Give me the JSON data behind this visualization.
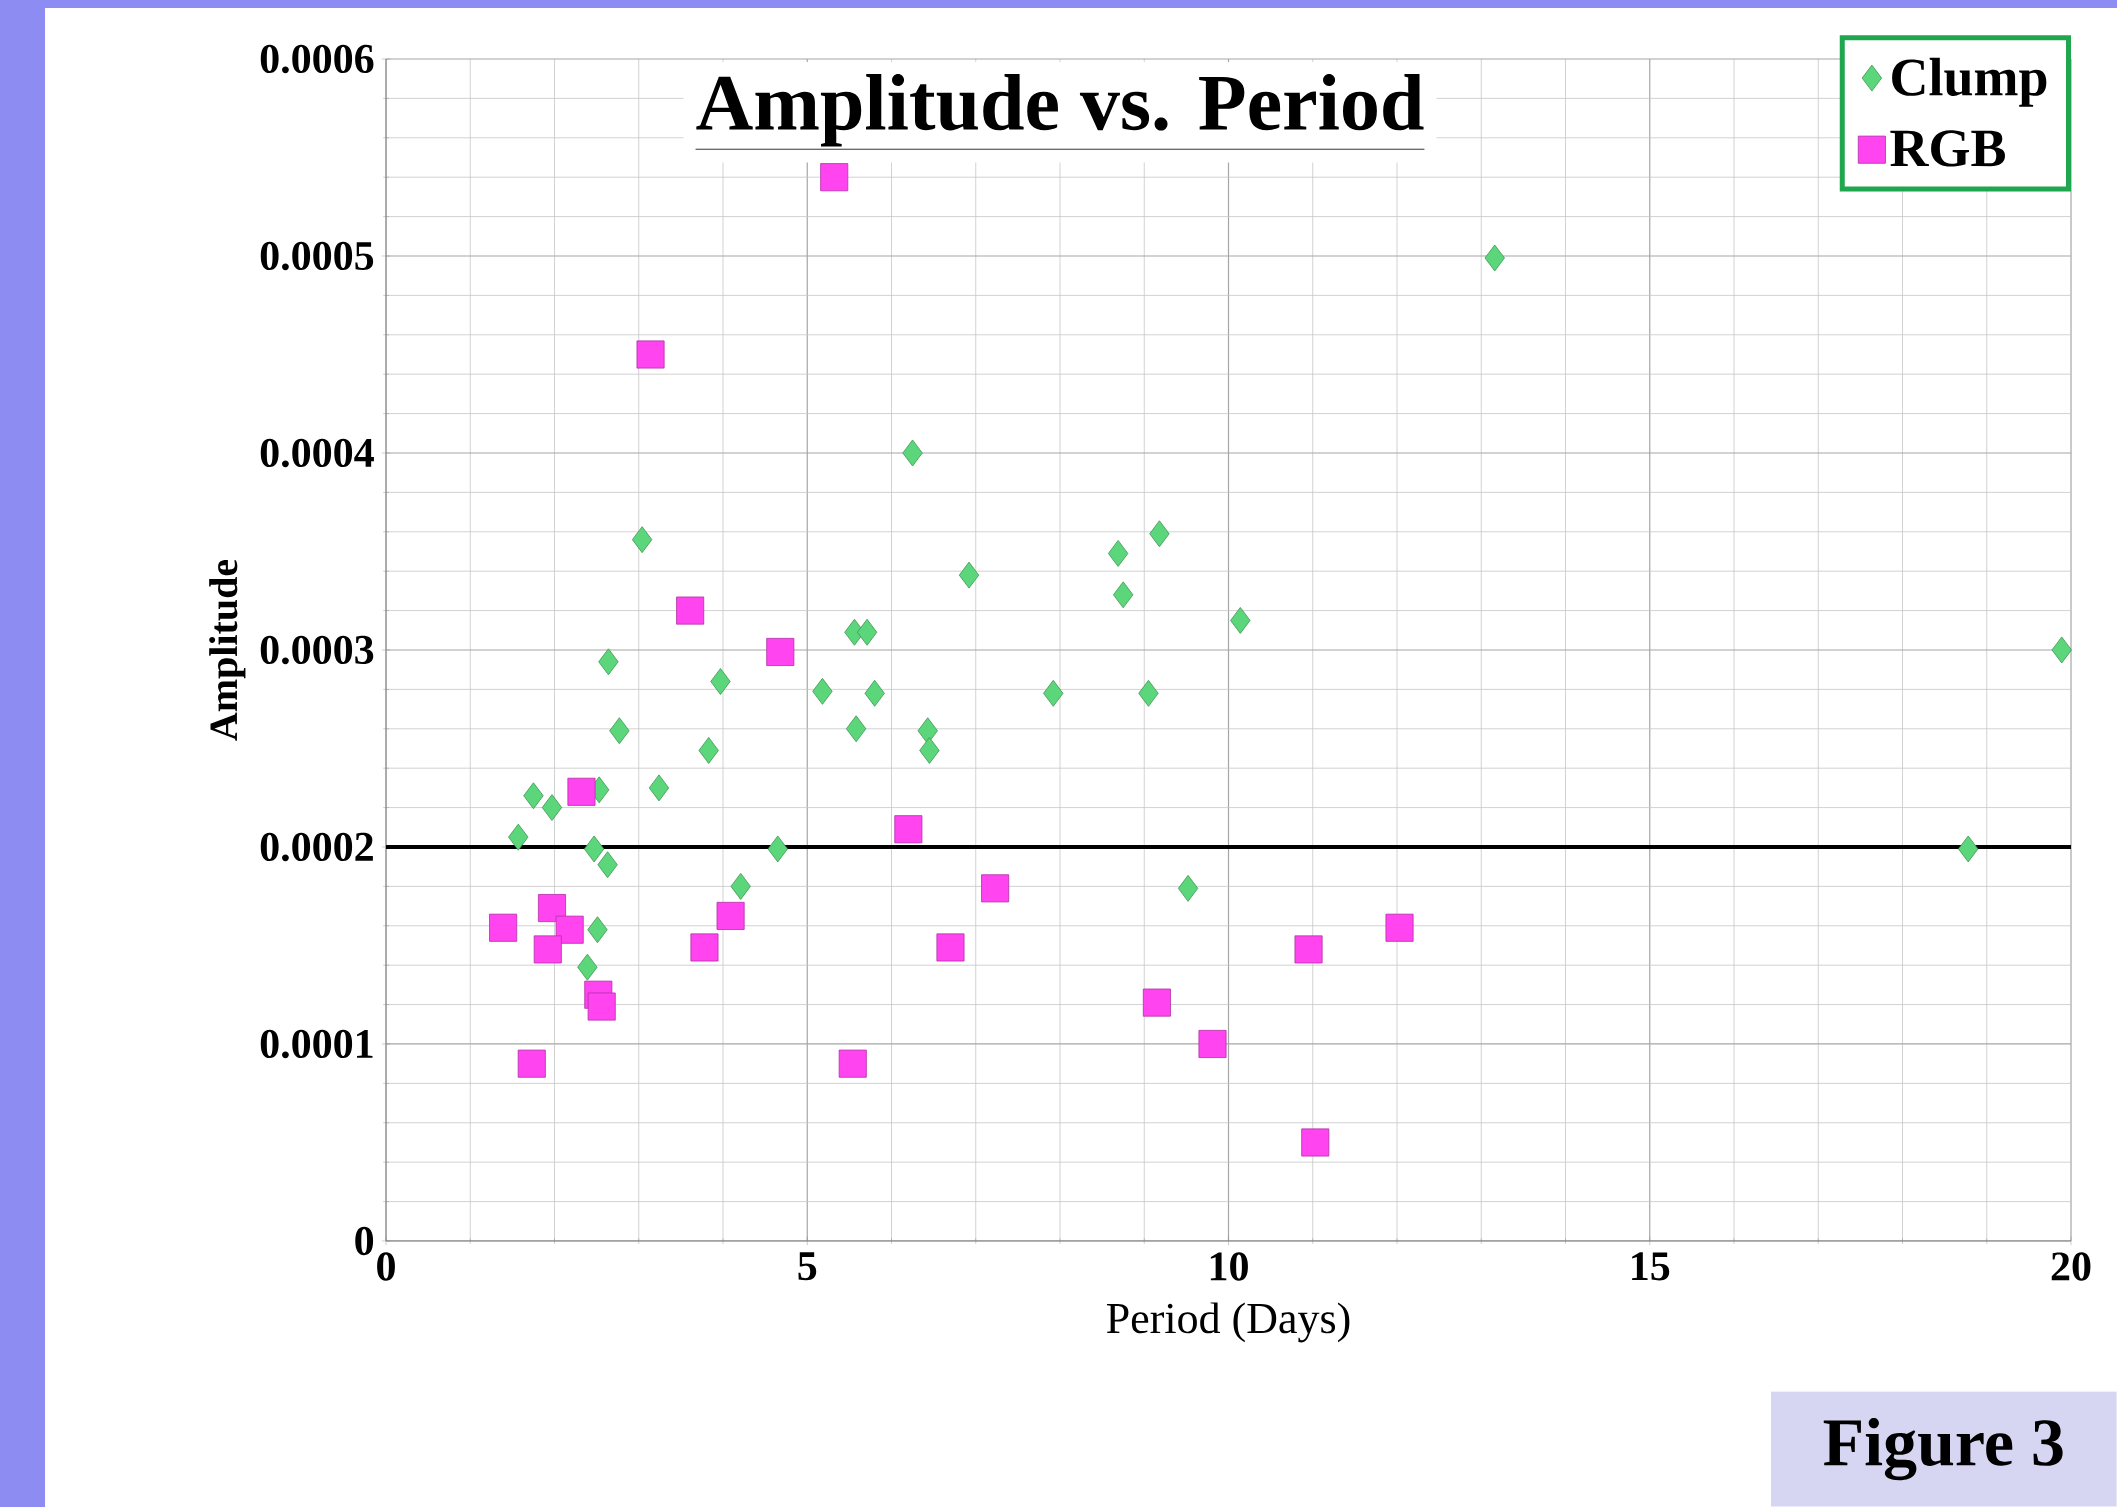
{
  "chart_data": {
    "type": "scatter",
    "title": "Amplitude vs. Period",
    "xlabel": "Period (Days)",
    "ylabel": "Amplitude",
    "xlim": [
      0,
      20
    ],
    "xticks": [
      0,
      5,
      10,
      15,
      20
    ],
    "ylim": [
      0,
      0.0006
    ],
    "yticks": [
      0,
      0.0001,
      0.0002,
      0.0003,
      0.0004,
      0.0005,
      0.0006
    ],
    "grid": true,
    "legend": "top right",
    "ref_lines": [
      {
        "axis": "y",
        "value": 0.0002,
        "color": "#000000"
      }
    ],
    "annotations": [
      "Figure 3"
    ],
    "series": [
      {
        "name": "Clump",
        "color": "#5cd67a",
        "marker": "diamond",
        "x": [
          1.57,
          1.75,
          1.97,
          2.53,
          2.47,
          2.63,
          2.51,
          2.39,
          2.64,
          2.77,
          3.04,
          3.24,
          3.83,
          3.97,
          4.21,
          4.65,
          5.18,
          5.58,
          5.56,
          5.71,
          5.8,
          6.25,
          6.43,
          6.45,
          6.92,
          7.92,
          8.69,
          8.75,
          9.05,
          9.18,
          9.52,
          10.14,
          13.16,
          18.78,
          19.89
        ],
        "values": [
          0.000205,
          0.000226,
          0.00022,
          0.000229,
          0.000199,
          0.000191,
          0.000158,
          0.000139,
          0.000294,
          0.000259,
          0.000356,
          0.00023,
          0.000249,
          0.000284,
          0.00018,
          0.000199,
          0.000279,
          0.00026,
          0.000309,
          0.000309,
          0.000278,
          0.0004,
          0.000259,
          0.000249,
          0.000338,
          0.000278,
          0.000349,
          0.000328,
          0.000278,
          0.000359,
          0.000179,
          0.000315,
          0.000499,
          0.000199,
          0.0003
        ]
      },
      {
        "name": "RGB",
        "color": "#ff44f0",
        "marker": "square",
        "x": [
          5.32,
          3.14,
          3.61,
          4.68,
          2.32,
          6.2,
          7.23,
          1.39,
          1.97,
          2.18,
          1.92,
          4.09,
          3.78,
          6.7,
          10.95,
          12.03,
          2.52,
          2.56,
          9.15,
          9.81,
          1.73,
          5.54,
          11.03
        ],
        "values": [
          0.00054,
          0.00045,
          0.00032,
          0.000299,
          0.000228,
          0.000209,
          0.000179,
          0.000159,
          0.000169,
          0.000158,
          0.000148,
          0.000165,
          0.000149,
          0.000149,
          0.000148,
          0.000159,
          0.000125,
          0.000119,
          0.000121,
          0.0001,
          9e-05,
          9e-05,
          5e-05
        ]
      }
    ]
  }
}
